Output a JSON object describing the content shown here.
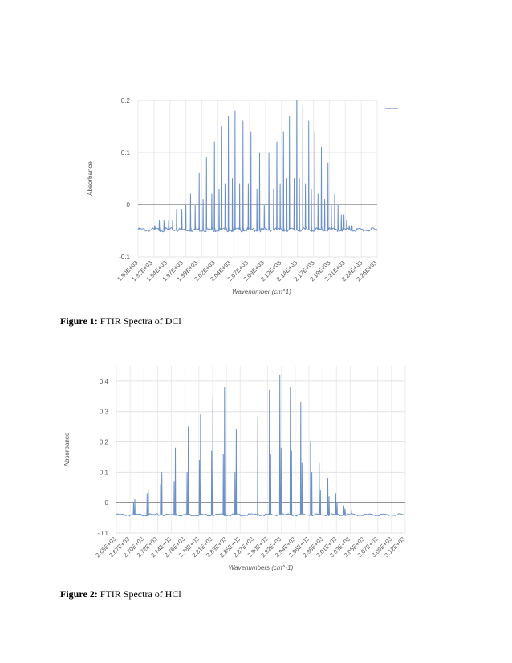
{
  "captions": [
    {
      "label": "Figure 1:",
      "text": "FTIR Spectra of DCl"
    },
    {
      "label": "Figure 2:",
      "text": "FTIR Spectra of HCl"
    }
  ],
  "chart_data": [
    {
      "type": "line",
      "ylabel": "Absorbance",
      "xlabel": "Wavenumber (cm^1)",
      "xlim": [
        1900,
        2260
      ],
      "ylim": [
        -0.1,
        0.2
      ],
      "y_ticks": [
        "0.2",
        "0.1",
        "0",
        "-0.1"
      ],
      "y_tick_values": [
        0.2,
        0.1,
        0,
        -0.1
      ],
      "x_ticks": [
        "1.90E+03",
        "1.92E+03",
        "1.94E+03",
        "1.97E+03",
        "1.99E+03",
        "2.02E+03",
        "2.04E+03",
        "2.07E+03",
        "2.09E+03",
        "2.12E+03",
        "2.14E+03",
        "2.17E+03",
        "2.19E+03",
        "2.21E+03",
        "2.24E+03",
        "2.26E+03"
      ],
      "x_tick_values": [
        1900,
        1922,
        1944,
        1968,
        1990,
        2016,
        2040,
        2066,
        2090,
        2116,
        2140,
        2166,
        2190,
        2212,
        2238,
        2260
      ],
      "baseline": -0.048,
      "grid": true,
      "legend": "top-right",
      "peaks": [
        [
          1925,
          -0.04
        ],
        [
          1932,
          -0.03
        ],
        [
          1939,
          -0.03
        ],
        [
          1946,
          -0.03
        ],
        [
          1952,
          -0.03
        ],
        [
          1958,
          -0.01
        ],
        [
          1966,
          -0.01
        ],
        [
          1972,
          0.0
        ],
        [
          1979,
          0.02
        ],
        [
          1986,
          0.0
        ],
        [
          1992,
          0.06
        ],
        [
          1998,
          0.01
        ],
        [
          2003,
          0.09
        ],
        [
          2011,
          0.02
        ],
        [
          2015,
          0.12
        ],
        [
          2022,
          0.03
        ],
        [
          2026,
          0.15
        ],
        [
          2031,
          0.04
        ],
        [
          2036,
          0.17
        ],
        [
          2042,
          0.05
        ],
        [
          2046,
          0.18
        ],
        [
          2053,
          0.04
        ],
        [
          2058,
          0.16
        ],
        [
          2066,
          0.04
        ],
        [
          2070,
          0.14
        ],
        [
          2079,
          0.03
        ],
        [
          2083,
          0.1
        ],
        [
          2090,
          0.0
        ],
        [
          2097,
          0.1
        ],
        [
          2104,
          0.03
        ],
        [
          2109,
          0.12
        ],
        [
          2114,
          0.04
        ],
        [
          2119,
          0.14
        ],
        [
          2124,
          0.05
        ],
        [
          2128,
          0.17
        ],
        [
          2135,
          0.05
        ],
        [
          2139,
          0.2
        ],
        [
          2143,
          0.05
        ],
        [
          2148,
          0.19
        ],
        [
          2152,
          0.04
        ],
        [
          2157,
          0.16
        ],
        [
          2161,
          0.03
        ],
        [
          2166,
          0.14
        ],
        [
          2171,
          0.02
        ],
        [
          2176,
          0.11
        ],
        [
          2181,
          0.01
        ],
        [
          2186,
          0.08
        ],
        [
          2191,
          0.0
        ],
        [
          2196,
          0.02
        ],
        [
          2201,
          0.0
        ],
        [
          2206,
          -0.02
        ],
        [
          2210,
          -0.02
        ],
        [
          2214,
          -0.03
        ],
        [
          2218,
          -0.04
        ],
        [
          2222,
          -0.04
        ]
      ]
    },
    {
      "type": "line",
      "ylabel": "Absorbance",
      "xlabel": "Wavenumbers (cm^-1)",
      "xlim": [
        2650,
        3120
      ],
      "ylim": [
        -0.1,
        0.45
      ],
      "y_ticks": [
        "0.4",
        "0.3",
        "0.2",
        "0.1",
        "0",
        "-0.1"
      ],
      "y_tick_values": [
        0.4,
        0.3,
        0.2,
        0.1,
        0,
        -0.1
      ],
      "x_ticks": [
        "2.65E+03",
        "2.67E+03",
        "2.70E+03",
        "2.72E+03",
        "2.74E+03",
        "2.76E+03",
        "2.78E+03",
        "2.81E+03",
        "2.83E+03",
        "2.85E+03",
        "2.87E+03",
        "2.90E+03",
        "2.92E+03",
        "2.94E+03",
        "2.96E+03",
        "2.98E+03",
        "3.01E+03",
        "3.03E+03",
        "3.05E+03",
        "3.07E+03",
        "3.09E+03",
        "3.12E+03"
      ],
      "x_tick_values": [
        2650,
        2672,
        2695,
        2717,
        2740,
        2762,
        2785,
        2807,
        2830,
        2852,
        2874,
        2897,
        2919,
        2942,
        2964,
        2987,
        3009,
        3031,
        3054,
        3076,
        3099,
        3120
      ],
      "baseline": -0.04,
      "grid": true,
      "peaks": [
        [
          2678,
          0.0
        ],
        [
          2680,
          0.01
        ],
        [
          2700,
          0.03
        ],
        [
          2702,
          0.04
        ],
        [
          2722,
          0.06
        ],
        [
          2724,
          0.1
        ],
        [
          2744,
          0.07
        ],
        [
          2746,
          0.18
        ],
        [
          2765,
          0.1
        ],
        [
          2767,
          0.25
        ],
        [
          2785,
          0.14
        ],
        [
          2787,
          0.29
        ],
        [
          2805,
          0.17
        ],
        [
          2807,
          0.35
        ],
        [
          2824,
          0.16
        ],
        [
          2826,
          0.38
        ],
        [
          2843,
          0.1
        ],
        [
          2845,
          0.24
        ],
        [
          2880,
          0.28
        ],
        [
          2899,
          0.37
        ],
        [
          2901,
          0.16
        ],
        [
          2916,
          0.42
        ],
        [
          2918,
          0.18
        ],
        [
          2933,
          0.38
        ],
        [
          2935,
          0.17
        ],
        [
          2950,
          0.33
        ],
        [
          2952,
          0.13
        ],
        [
          2966,
          0.2
        ],
        [
          2968,
          0.1
        ],
        [
          2980,
          0.13
        ],
        [
          2982,
          0.04
        ],
        [
          2994,
          0.08
        ],
        [
          2996,
          0.02
        ],
        [
          3007,
          0.03
        ],
        [
          3009,
          0.0
        ],
        [
          3020,
          -0.01
        ],
        [
          3022,
          -0.02
        ],
        [
          3032,
          -0.02
        ]
      ]
    }
  ]
}
